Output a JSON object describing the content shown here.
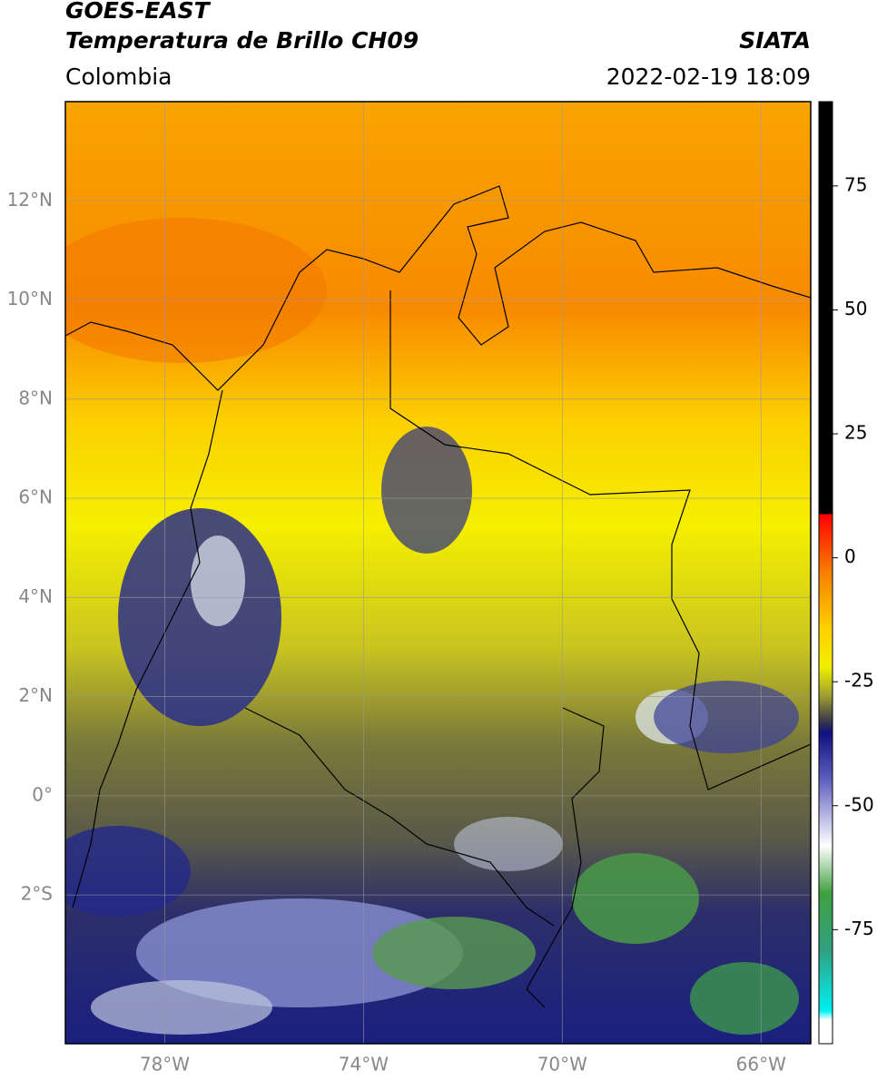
{
  "header": {
    "title": "GOES-EAST",
    "subtitle": "Temperatura de Brillo CH09",
    "region": "Colombia",
    "source": "SIATA",
    "datetime": "2022-02-19 18:09"
  },
  "map": {
    "latlim": [
      -5,
      14
    ],
    "lonlim": [
      -80,
      -65
    ],
    "lat_ticks": [
      {
        "value": 12,
        "label": "12°N"
      },
      {
        "value": 10,
        "label": "10°N"
      },
      {
        "value": 8,
        "label": "8°N"
      },
      {
        "value": 6,
        "label": "6°N"
      },
      {
        "value": 4,
        "label": "4°N"
      },
      {
        "value": 2,
        "label": "2°N"
      },
      {
        "value": 0,
        "label": "0°"
      },
      {
        "value": -2,
        "label": "2°S"
      }
    ],
    "lon_ticks": [
      {
        "value": -78,
        "label": "78°W"
      },
      {
        "value": -74,
        "label": "74°W"
      },
      {
        "value": -70,
        "label": "70°W"
      },
      {
        "value": -66,
        "label": "66°W"
      }
    ]
  },
  "colorbar": {
    "lim": [
      -98,
      92
    ],
    "ticks": [
      75,
      50,
      25,
      0,
      -25,
      -50,
      -75
    ]
  }
}
